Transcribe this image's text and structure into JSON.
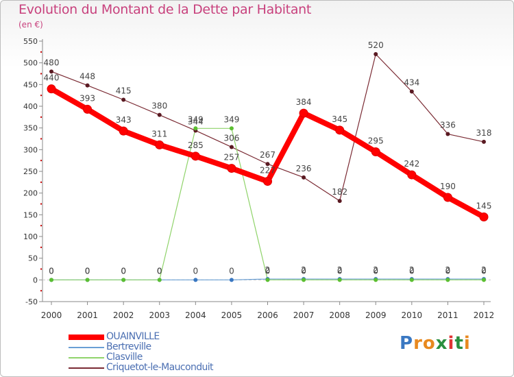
{
  "header": {
    "title": "Evolution du Montant de la Dette par Habitant",
    "unit": "(en €)"
  },
  "logo": {
    "letters": [
      "P",
      "r",
      "o",
      "x",
      "i",
      "t",
      "i"
    ],
    "colors": [
      "#3a78c2",
      "#e8891f",
      "#e8891f",
      "#2b8f3f",
      "#e03434",
      "#2b8f3f",
      "#e8891f"
    ]
  },
  "chart_data": {
    "type": "line",
    "title": "Evolution du Montant de la Dette par Habitant",
    "subtitle": "(en €)",
    "x": [
      "2000",
      "2001",
      "2002",
      "2003",
      "2004",
      "2005",
      "2006",
      "2007",
      "2008",
      "2009",
      "2010",
      "2011",
      "2012"
    ],
    "ylim": [
      -50,
      550
    ],
    "yticks": [
      -50,
      0,
      50,
      100,
      150,
      200,
      250,
      300,
      350,
      400,
      450,
      500,
      550
    ],
    "grid": false,
    "legend_position": "bottom-left",
    "series": [
      {
        "name": "Criquetot-le-Mauconduit",
        "color": "#7a2a33",
        "values": [
          480,
          448,
          415,
          380,
          344,
          306,
          267,
          236,
          182,
          520,
          434,
          336,
          318
        ]
      },
      {
        "name": "Bertreville",
        "color": "#6a9fd4",
        "values": [
          0,
          0,
          0,
          0,
          0,
          0,
          2,
          2,
          2,
          2,
          2,
          2,
          2
        ]
      },
      {
        "name": "Clasville",
        "color": "#8fd36a",
        "values": [
          0,
          0,
          0,
          0,
          349,
          349,
          0,
          0,
          0,
          0,
          0,
          0,
          0
        ]
      },
      {
        "name": "OUAINVILLE",
        "color": "#ff0000",
        "values": [
          440,
          393,
          343,
          311,
          285,
          257,
          227,
          384,
          345,
          295,
          242,
          190,
          145
        ]
      }
    ],
    "legend_order": [
      "OUAINVILLE",
      "Bertreville",
      "Clasville",
      "Criquetot-le-Mauconduit"
    ]
  }
}
